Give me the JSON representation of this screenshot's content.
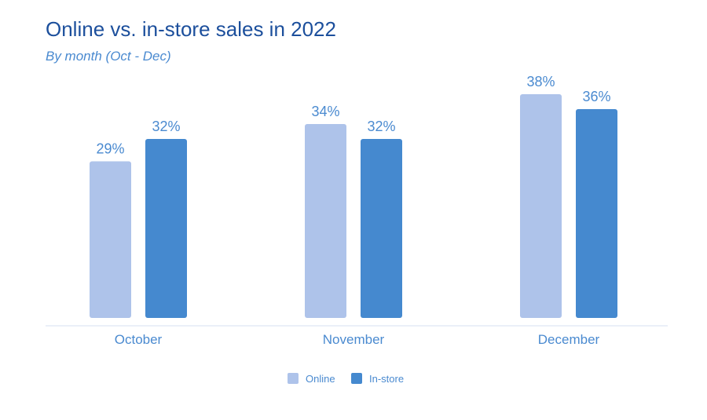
{
  "chart_data": {
    "type": "bar",
    "title": "Online vs. in-store sales in 2022",
    "subtitle": "By month (Oct - Dec)",
    "categories": [
      "October",
      "November",
      "December"
    ],
    "series": [
      {
        "name": "Online",
        "values": [
          29,
          34,
          38
        ],
        "color": "#aec3ea"
      },
      {
        "name": "In-store",
        "values": [
          32,
          32,
          36
        ],
        "color": "#4589cf"
      }
    ],
    "value_suffix": "%",
    "ylim": [
      8,
      40
    ],
    "grid": false,
    "legend": "bottom-center",
    "xlabel": "",
    "ylabel": ""
  }
}
